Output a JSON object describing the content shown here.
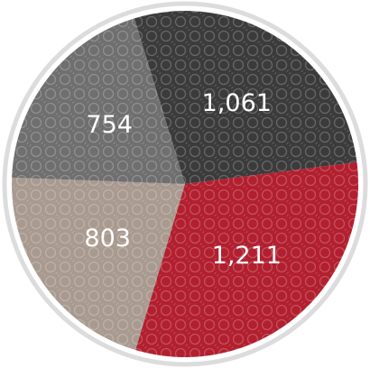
{
  "chart_data": {
    "type": "pie",
    "categories": [
      null,
      null,
      null,
      null
    ],
    "values": [
      1061,
      1211,
      803,
      754
    ],
    "value_labels": [
      "1,061",
      "1,211",
      "803",
      "754"
    ],
    "colors": [
      "#3b3b3c",
      "#b21f2f",
      "#a99a90",
      "#6f6f70"
    ]
  }
}
